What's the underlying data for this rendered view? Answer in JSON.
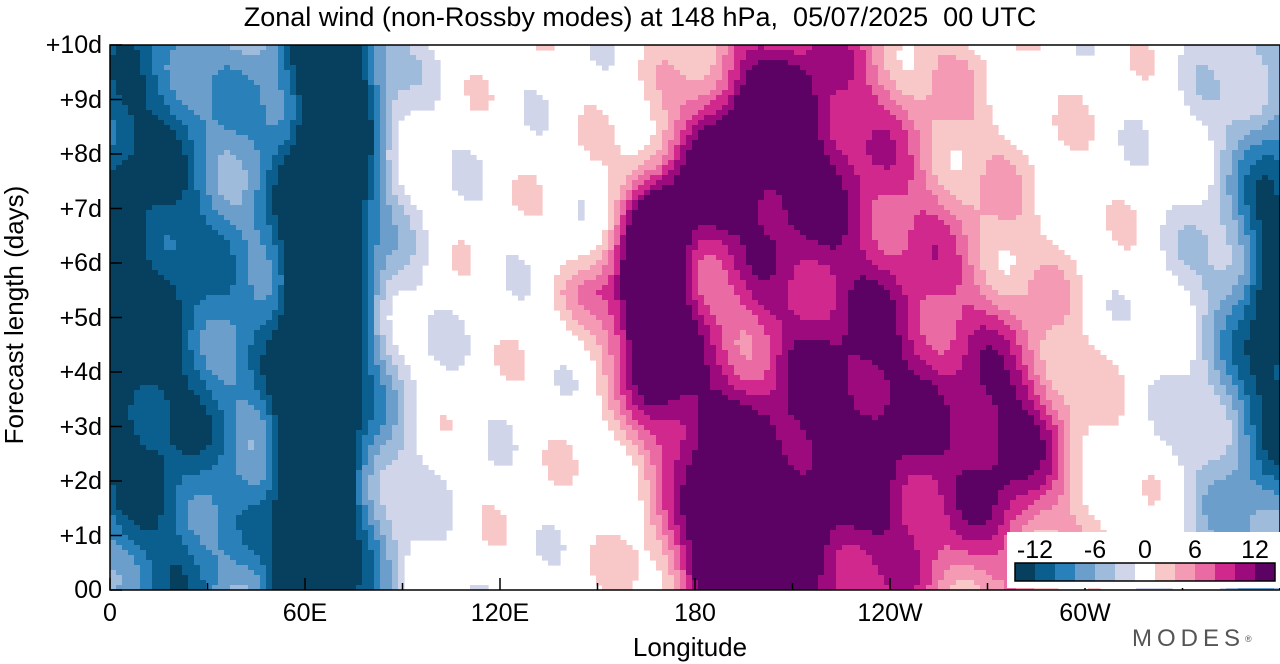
{
  "chart_data": {
    "type": "heatmap",
    "title": "Zonal wind (non-Rossby modes) at 148 hPa,  05/07/2025  00 UTC",
    "xlabel": "Longitude",
    "ylabel": "Forecast length (days)",
    "x_ticks": [
      "0",
      "60E",
      "120E",
      "180",
      "120W",
      "60W"
    ],
    "x_tick_values": [
      0,
      60,
      120,
      180,
      240,
      300
    ],
    "xlim": [
      0,
      360
    ],
    "y_ticks": [
      "00",
      "+1d",
      "+2d",
      "+3d",
      "+4d",
      "+5d",
      "+6d",
      "+7d",
      "+8d",
      "+9d",
      "+10d"
    ],
    "y_tick_values": [
      0,
      1,
      2,
      3,
      4,
      5,
      6,
      7,
      8,
      9,
      10
    ],
    "ylim": [
      0,
      10
    ],
    "grid": false,
    "colorbar": {
      "placement": "bottom-right",
      "tick_labels": [
        "-12",
        "-6",
        "0",
        "6",
        "12"
      ],
      "tick_values": [
        -12,
        -6,
        0,
        6,
        12
      ],
      "levels": [
        -14,
        -12,
        -10,
        -8,
        -6,
        -4,
        -2,
        2,
        4,
        6,
        8,
        10,
        12,
        14
      ],
      "colors": [
        "#06405e",
        "#0a5f8f",
        "#2a80b9",
        "#6b9ecb",
        "#9fbbdc",
        "#d0d5e9",
        "#ffffff",
        "#f8c8c8",
        "#f59ab5",
        "#ea6aa3",
        "#d0288d",
        "#9c0a7e",
        "#5d0265"
      ]
    },
    "features": [
      {
        "name": "easterly band near 55-75E",
        "lon_center_start": 62,
        "lon_center_end": 72,
        "peak": -14
      },
      {
        "name": "easterly region 0-40E",
        "lon_center": 15,
        "peak": -10
      },
      {
        "name": "westerly tilted band 160E to 150W",
        "lon_start": 165,
        "lon_end": 210,
        "peak": 14
      },
      {
        "name": "westerly maximum near 170E day 5.5",
        "lon": 168,
        "day": 5.5,
        "peak": 13
      },
      {
        "name": "easterly near 60W-0 late forecast",
        "lon_center": 355,
        "peak": -10
      }
    ]
  },
  "watermark": "MODES"
}
